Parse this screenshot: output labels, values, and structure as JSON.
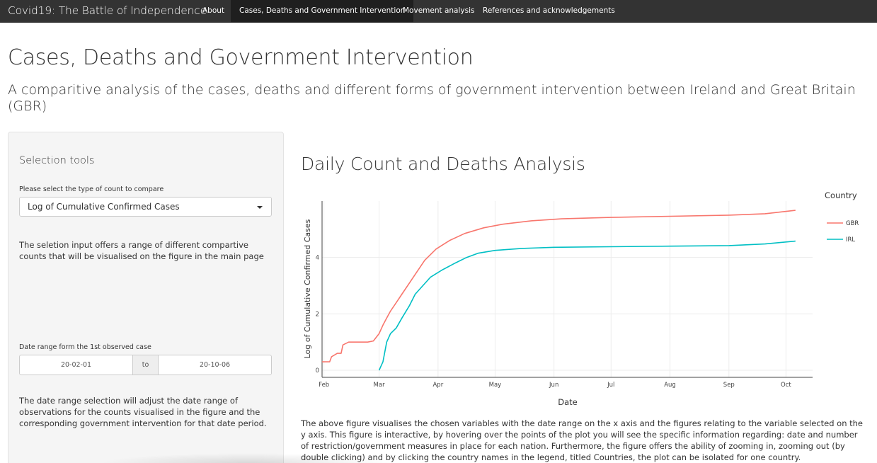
{
  "navbar": {
    "brand": "Covid19: The Battle of Independence",
    "items": [
      {
        "label": "About"
      },
      {
        "label": "Cases, Deaths and Government Intervention"
      },
      {
        "label": "Movement analysis"
      },
      {
        "label": "References and acknowledgements"
      }
    ],
    "active_index": 1
  },
  "page": {
    "title": "Cases, Deaths and Government Intervention",
    "subtitle": "A comparitive analysis of the cases, deaths and different forms of government intervention between Ireland and Great Britain (GBR)"
  },
  "sidebar": {
    "title": "Selection tools",
    "count_label": "Please select the type of count to compare",
    "count_value": "Log of Cumulative Confirmed Cases",
    "count_help": "The seletion input offers a range of different compartive counts that will be visualised on the figure in the main page",
    "date_label": "Date range form the 1st observed case",
    "date_start": "20-02-01",
    "date_sep": "to",
    "date_end": "20-10-06",
    "date_help": "The date range selection will adjust the date range of observations for the counts visualised in the figure and the corresponding government intervention for that date period."
  },
  "main": {
    "plot_title": "Daily Count and Deaths Analysis",
    "description": "The above figure visualises the chosen variables with the date range on the x axis and the figures relating to the variable selected on the y axis. This figure is interactive, by hovering over the points of the plot you will see the specific information regarding: date and number of restriction/government measures in place for each nation. Furthermore, the figure offers the ability of zooming in, zooming out (by double clicking) and by clicking the country names in the legend, titled Countries, the plot can be isolated for one country."
  },
  "colors": {
    "navbar_bg": "#333333",
    "gbr": "#F8766D",
    "irl": "#00BFC4"
  },
  "chart_data": {
    "type": "line",
    "xlabel": "Date",
    "ylabel": "Log of Cumulative Confirmed Cases",
    "x_ticks": [
      "Feb",
      "Mar",
      "Apr",
      "May",
      "Jun",
      "Jul",
      "Aug",
      "Sep",
      "Oct"
    ],
    "x_tick_dates": [
      "2020-02-01",
      "2020-03-01",
      "2020-04-01",
      "2020-05-01",
      "2020-06-01",
      "2020-07-01",
      "2020-08-01",
      "2020-09-01",
      "2020-10-01"
    ],
    "y_ticks": [
      0,
      2,
      4
    ],
    "xlim": [
      "2020-01-31",
      "2020-10-15"
    ],
    "ylim": [
      -0.25,
      6.0
    ],
    "grid": true,
    "legend_title": "Country",
    "legend_position": "right",
    "series": [
      {
        "name": "GBR",
        "color": "#F8766D",
        "points": [
          [
            "2020-01-31",
            0.3
          ],
          [
            "2020-02-04",
            0.3
          ],
          [
            "2020-02-05",
            0.48
          ],
          [
            "2020-02-08",
            0.6
          ],
          [
            "2020-02-10",
            0.6
          ],
          [
            "2020-02-11",
            0.9
          ],
          [
            "2020-02-14",
            1.0
          ],
          [
            "2020-02-24",
            1.0
          ],
          [
            "2020-02-27",
            1.04
          ],
          [
            "2020-03-01",
            1.3
          ],
          [
            "2020-03-03",
            1.6
          ],
          [
            "2020-03-05",
            1.85
          ],
          [
            "2020-03-07",
            2.1
          ],
          [
            "2020-03-10",
            2.4
          ],
          [
            "2020-03-13",
            2.7
          ],
          [
            "2020-03-16",
            3.0
          ],
          [
            "2020-03-20",
            3.4
          ],
          [
            "2020-03-25",
            3.9
          ],
          [
            "2020-03-31",
            4.3
          ],
          [
            "2020-04-07",
            4.6
          ],
          [
            "2020-04-15",
            4.85
          ],
          [
            "2020-04-25",
            5.05
          ],
          [
            "2020-05-05",
            5.18
          ],
          [
            "2020-05-20",
            5.3
          ],
          [
            "2020-06-05",
            5.37
          ],
          [
            "2020-07-01",
            5.42
          ],
          [
            "2020-08-01",
            5.46
          ],
          [
            "2020-09-01",
            5.5
          ],
          [
            "2020-09-20",
            5.55
          ],
          [
            "2020-10-06",
            5.67
          ]
        ]
      },
      {
        "name": "IRL",
        "color": "#00BFC4",
        "points": [
          [
            "2020-03-01",
            0.0
          ],
          [
            "2020-03-03",
            0.3
          ],
          [
            "2020-03-05",
            1.0
          ],
          [
            "2020-03-07",
            1.3
          ],
          [
            "2020-03-10",
            1.5
          ],
          [
            "2020-03-13",
            1.85
          ],
          [
            "2020-03-17",
            2.3
          ],
          [
            "2020-03-20",
            2.7
          ],
          [
            "2020-03-24",
            3.0
          ],
          [
            "2020-03-28",
            3.3
          ],
          [
            "2020-04-03",
            3.55
          ],
          [
            "2020-04-10",
            3.8
          ],
          [
            "2020-04-16",
            4.0
          ],
          [
            "2020-04-22",
            4.15
          ],
          [
            "2020-05-01",
            4.25
          ],
          [
            "2020-05-15",
            4.32
          ],
          [
            "2020-06-01",
            4.36
          ],
          [
            "2020-07-01",
            4.38
          ],
          [
            "2020-08-01",
            4.4
          ],
          [
            "2020-09-01",
            4.42
          ],
          [
            "2020-09-20",
            4.48
          ],
          [
            "2020-10-06",
            4.58
          ]
        ]
      }
    ]
  }
}
